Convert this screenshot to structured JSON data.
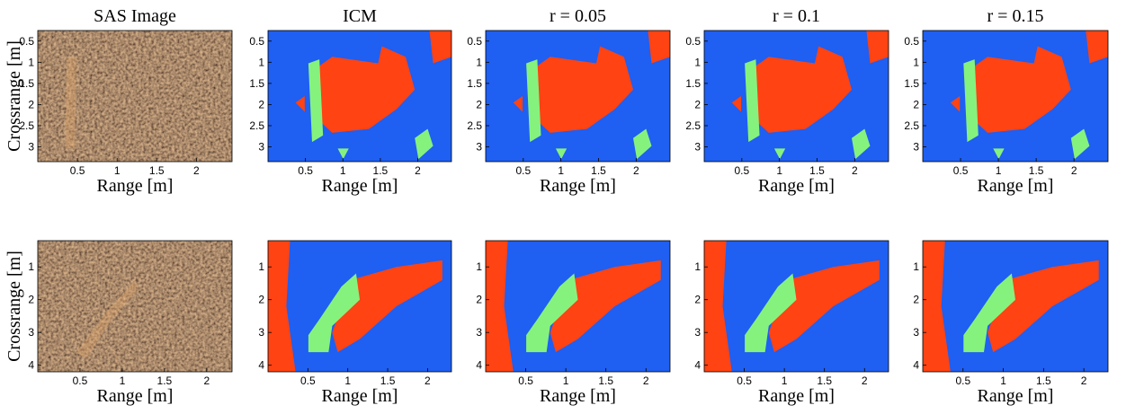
{
  "chart_data": [
    {
      "type": "sonar",
      "title": "SAS Image",
      "xlabel": "Range [m]",
      "ylabel": "Crossrange [m]",
      "xlim": [
        0,
        2.45
      ],
      "ylim": [
        0.25,
        3.35
      ],
      "xticks": [
        0.5,
        1,
        1.5,
        2
      ],
      "yticks": [
        0.5,
        1,
        1.5,
        2,
        2.5,
        3
      ]
    },
    {
      "type": "segmentation",
      "title": "ICM",
      "xlabel": "Range [m]",
      "xlim": [
        0,
        2.45
      ],
      "ylim": [
        0.25,
        3.35
      ],
      "xticks": [
        0.5,
        1,
        1.5,
        2
      ],
      "yticks": [
        0.5,
        1,
        1.5,
        2,
        2.5,
        3
      ]
    },
    {
      "type": "segmentation",
      "title": "r = 0.05",
      "xlabel": "Range [m]",
      "xlim": [
        0,
        2.45
      ],
      "ylim": [
        0.25,
        3.35
      ],
      "xticks": [
        0.5,
        1,
        1.5,
        2
      ],
      "yticks": [
        0.5,
        1,
        1.5,
        2,
        2.5,
        3
      ]
    },
    {
      "type": "segmentation",
      "title": "r = 0.1",
      "xlabel": "Range [m]",
      "xlim": [
        0,
        2.45
      ],
      "ylim": [
        0.25,
        3.35
      ],
      "xticks": [
        0.5,
        1,
        1.5,
        2
      ],
      "yticks": [
        0.5,
        1,
        1.5,
        2,
        2.5,
        3
      ]
    },
    {
      "type": "segmentation",
      "title": "r = 0.15",
      "xlabel": "Range [m]",
      "xlim": [
        0,
        2.45
      ],
      "ylim": [
        0.25,
        3.35
      ],
      "xticks": [
        0.5,
        1,
        1.5,
        2
      ],
      "yticks": [
        0.5,
        1,
        1.5,
        2,
        2.5,
        3
      ]
    },
    {
      "type": "sonar",
      "xlabel": "Range [m]",
      "ylabel": "Crossrange [m]",
      "xlim": [
        0,
        2.3
      ],
      "ylim": [
        0.2,
        4.2
      ],
      "xticks": [
        0.5,
        1,
        1.5,
        2
      ],
      "yticks": [
        1,
        2,
        3,
        4
      ]
    },
    {
      "type": "segmentation",
      "xlabel": "Range [m]",
      "xlim": [
        0,
        2.3
      ],
      "ylim": [
        0.2,
        4.2
      ],
      "xticks": [
        0.5,
        1,
        1.5,
        2
      ],
      "yticks": [
        1,
        2,
        3,
        4
      ]
    },
    {
      "type": "segmentation",
      "xlabel": "Range [m]",
      "xlim": [
        0,
        2.3
      ],
      "ylim": [
        0.2,
        4.2
      ],
      "xticks": [
        0.5,
        1,
        1.5,
        2
      ],
      "yticks": [
        1,
        2,
        3,
        4
      ]
    },
    {
      "type": "segmentation",
      "xlabel": "Range [m]",
      "xlim": [
        0,
        2.3
      ],
      "ylim": [
        0.2,
        4.2
      ],
      "xticks": [
        0.5,
        1,
        1.5,
        2
      ],
      "yticks": [
        1,
        2,
        3,
        4
      ]
    },
    {
      "type": "segmentation",
      "xlabel": "Range [m]",
      "xlim": [
        0,
        2.3
      ],
      "ylim": [
        0.2,
        4.2
      ],
      "xticks": [
        0.5,
        1,
        1.5,
        2
      ],
      "yticks": [
        1,
        2,
        3,
        4
      ]
    }
  ]
}
